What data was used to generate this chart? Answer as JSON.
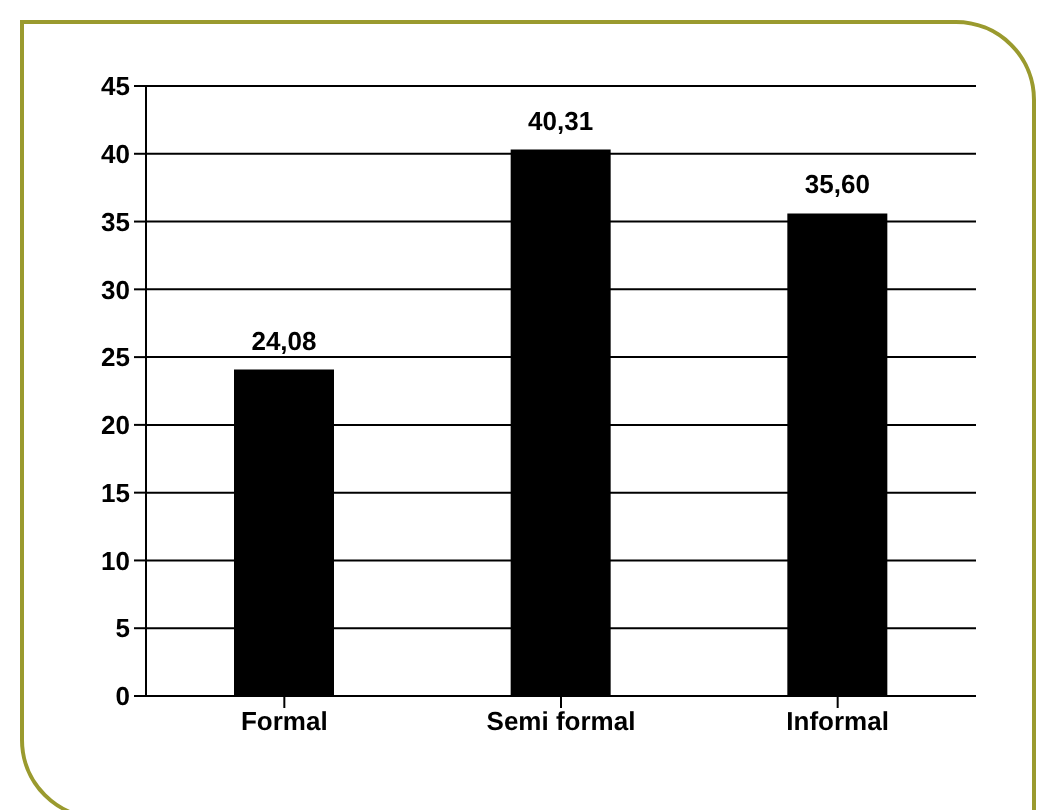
{
  "chart_data": {
    "type": "bar",
    "categories": [
      "Formal",
      "Semi formal",
      "Informal"
    ],
    "values": [
      24.08,
      40.31,
      35.6
    ],
    "value_labels": [
      "24,08",
      "40,31",
      "35,60"
    ],
    "color": "#000000",
    "ylim": [
      0,
      45
    ],
    "yticks": [
      0,
      5,
      10,
      15,
      20,
      25,
      30,
      35,
      40,
      45
    ],
    "grid": "y"
  }
}
